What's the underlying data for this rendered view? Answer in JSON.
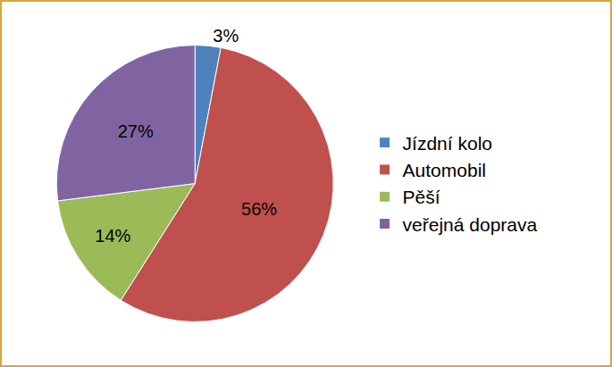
{
  "chart_data": {
    "type": "pie",
    "categories": [
      "Jízdní kolo",
      "Automobil",
      "Pěší",
      "veřejná doprava"
    ],
    "values": [
      3,
      56,
      14,
      27
    ],
    "value_labels": [
      "3%",
      "56%",
      "14%",
      "27%"
    ],
    "colors": [
      "#4f81bd",
      "#c0504d",
      "#9bbb59",
      "#8064a2"
    ],
    "data_labels": true,
    "legend": "right"
  }
}
